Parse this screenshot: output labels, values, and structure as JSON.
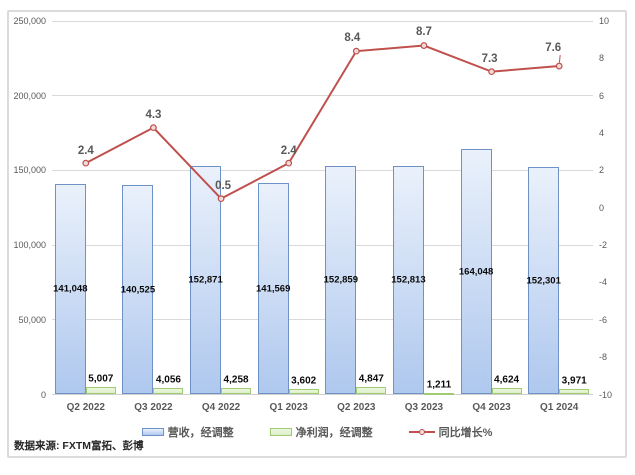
{
  "source_note": "数据来源: FXTM富拓、彭博",
  "chart_data": {
    "type": "combo-bar-line",
    "title": "",
    "categories": [
      "Q2 2022",
      "Q3 2022",
      "Q4 2022",
      "Q1 2023",
      "Q2 2023",
      "Q3 2023",
      "Q4 2023",
      "Q1 2024"
    ],
    "series": [
      {
        "name": "营收，经调整",
        "type": "bar",
        "axis": "left",
        "values": [
          141048,
          140525,
          152871,
          141569,
          152859,
          152813,
          164048,
          152301
        ],
        "labels": [
          "141,048",
          "140,525",
          "152,871",
          "141,569",
          "152,859",
          "152,813",
          "164,048",
          "152,301"
        ],
        "fill_top": "#EAF1FB",
        "fill_bottom": "#AFC8EE",
        "border": "#6E92C6"
      },
      {
        "name": "净利润，经调整",
        "type": "bar",
        "axis": "left",
        "values": [
          5007,
          4056,
          4258,
          3602,
          4847,
          1211,
          4624,
          3971
        ],
        "labels": [
          "5,007",
          "4,056",
          "4,258",
          "3,602",
          "4,847",
          "1,211",
          "4,624",
          "3,971"
        ],
        "fill_top": "#EDF7DF",
        "fill_bottom": "#DDEFC9",
        "border": "#9FCB73"
      },
      {
        "name": "同比增长%",
        "type": "line",
        "axis": "right",
        "values": [
          2.4,
          4.3,
          0.5,
          2.4,
          8.4,
          8.7,
          7.3,
          7.6
        ],
        "labels": [
          "2.4",
          "4.3",
          "0.5",
          "2.4",
          "8.4",
          "8.7",
          "7.3",
          "7.6"
        ],
        "color": "#C0504D",
        "marker_fill": "#F1DADA"
      }
    ],
    "left_axis": {
      "min": 0,
      "max": 250000,
      "step": 50000,
      "tick_labels": [
        "250,000",
        "200,000",
        "150,000",
        "100,000",
        "50,000",
        "0"
      ]
    },
    "right_axis": {
      "min": -10,
      "max": 10,
      "step": 2,
      "tick_labels": [
        "10",
        "8",
        "6",
        "4",
        "2",
        "0",
        "-2",
        "-4",
        "-6",
        "-8",
        "-10"
      ]
    },
    "grid": true,
    "legend_position": "bottom",
    "text_color": "#595959",
    "grid_color": "#D9D9D9"
  }
}
